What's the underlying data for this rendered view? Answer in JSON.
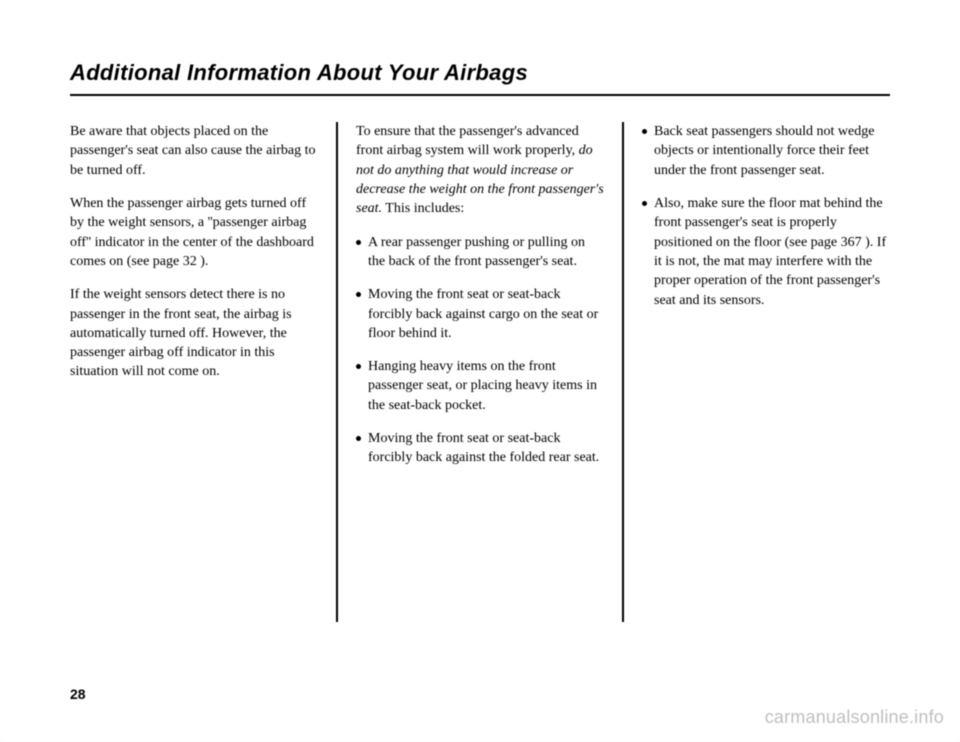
{
  "title": "Additional Information About Your Airbags",
  "pageNumber": "28",
  "watermark": "carmanualsonline.info",
  "col1": {
    "p1": "Be aware that objects placed on the passenger's seat can also cause the airbag to be turned off.",
    "p2": "When the passenger airbag gets turned off by the weight sensors, a ''passenger airbag off'' indicator in the center of the dashboard comes on (see page 32 ).",
    "p3": "If the weight sensors detect there is no passenger in the front seat, the airbag is automatically turned off. However, the passenger airbag off indicator in this situation will not come on."
  },
  "col2": {
    "intro_a": "To ensure that the passenger's advanced front airbag system will work properly, ",
    "intro_b": "do not do anything that would increase or decrease the weight on the front passenger's seat.",
    "intro_c": " This includes:",
    "b1": "A rear passenger pushing or pulling on the back of the front passenger's seat.",
    "b2": "Moving the front seat or seat-back forcibly back against cargo on the seat or floor behind it.",
    "b3": "Hanging heavy items on the front passenger seat, or placing heavy items in the seat-back pocket.",
    "b4": "Moving the front seat or seat-back forcibly back against the folded rear seat."
  },
  "col3": {
    "b1": "Back seat passengers should not wedge objects or intentionally force their feet under the front passenger seat.",
    "b2": "Also, make sure the floor mat behind the front passenger's seat is properly positioned on the floor (see page 367 ). If it is not, the mat may interfere with the proper operation of the front passenger's seat and its sensors."
  }
}
